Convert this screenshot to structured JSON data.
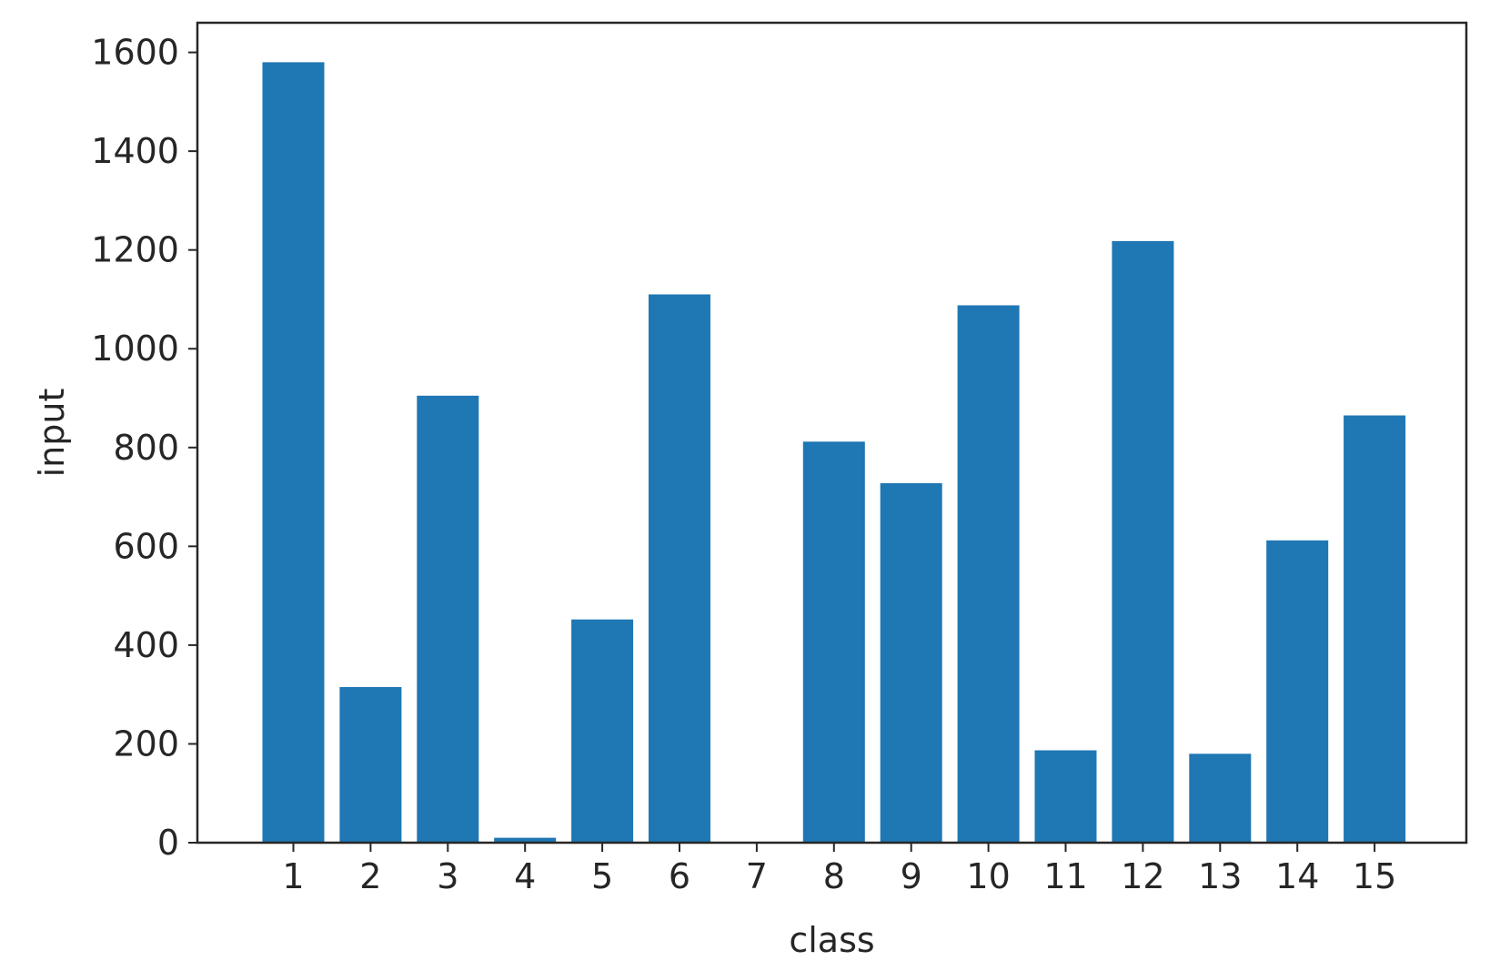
{
  "chart_data": {
    "type": "bar",
    "categories": [
      "1",
      "2",
      "3",
      "4",
      "5",
      "6",
      "7",
      "8",
      "9",
      "10",
      "11",
      "12",
      "13",
      "14",
      "15"
    ],
    "values": [
      1580,
      315,
      905,
      10,
      452,
      1110,
      0,
      812,
      728,
      1088,
      187,
      1218,
      180,
      612,
      865
    ],
    "xlabel": "class",
    "ylabel": "input",
    "ylim": [
      0,
      1660
    ],
    "yticks": [
      0,
      200,
      400,
      600,
      800,
      1000,
      1200,
      1400,
      1600
    ],
    "grid": false,
    "legend": "none",
    "bar_color": "#1f77b4"
  }
}
